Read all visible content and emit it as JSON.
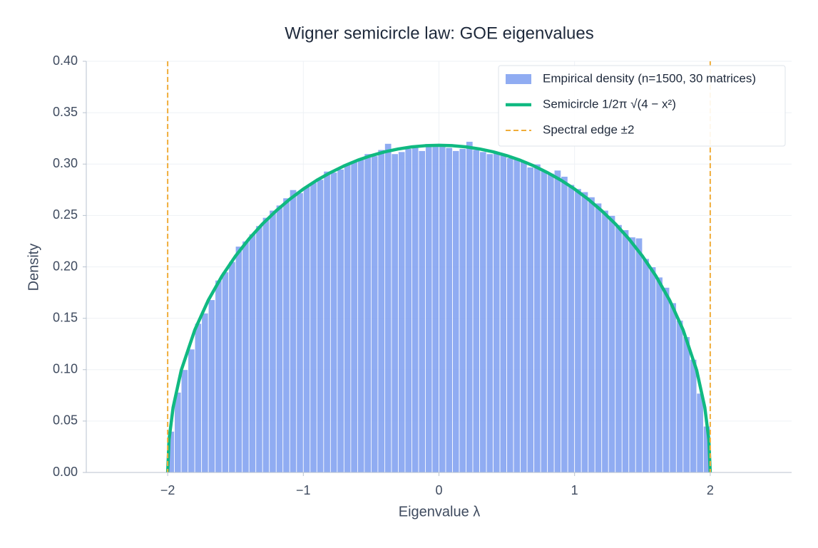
{
  "chart_data": {
    "type": "histogram",
    "title": "Wigner semicircle law: GOE eigenvalues",
    "xlabel": "Eigenvalue λ",
    "ylabel": "Density",
    "xlim": [
      -2.6,
      2.6
    ],
    "ylim": [
      0,
      0.4
    ],
    "xticks": [
      {
        "value": -2,
        "label": "−2"
      },
      {
        "value": -1,
        "label": "−1"
      },
      0,
      1,
      2
    ],
    "yticks": [
      {
        "value": 0,
        "label": "0.00"
      },
      {
        "value": 0.05,
        "label": "0.05"
      },
      {
        "value": 0.1,
        "label": "0.10"
      },
      {
        "value": 0.15,
        "label": "0.15"
      },
      {
        "value": 0.2,
        "label": "0.20"
      },
      {
        "value": 0.25,
        "label": "0.25"
      },
      {
        "value": 0.3,
        "label": "0.30"
      },
      {
        "value": 0.35,
        "label": "0.35"
      },
      {
        "value": 0.4,
        "label": "0.40"
      }
    ],
    "grid": true,
    "legend": "upper right",
    "series": [
      {
        "name": "Empirical density (n=1500, 30 matrices)",
        "type": "hist",
        "color": "#7c9df0",
        "bins": [
          -2,
          -1.95,
          -1.9,
          -1.85,
          -1.8,
          -1.75,
          -1.7,
          -1.65,
          -1.6,
          -1.55,
          -1.5,
          -1.45,
          -1.4,
          -1.35,
          -1.3,
          -1.25,
          -1.2,
          -1.15,
          -1.1,
          -1.05,
          -1,
          -0.95,
          -0.9,
          -0.85,
          -0.8,
          -0.75,
          -0.7,
          -0.65,
          -0.6,
          -0.55,
          -0.5,
          -0.45,
          -0.4,
          -0.35,
          -0.3,
          -0.25,
          -0.2,
          -0.15,
          -0.1,
          -0.05,
          0,
          0.05,
          0.1,
          0.15,
          0.2,
          0.25,
          0.3,
          0.35,
          0.4,
          0.45,
          0.5,
          0.55,
          0.6,
          0.65,
          0.7,
          0.75,
          0.8,
          0.85,
          0.9,
          0.95,
          1,
          1.05,
          1.1,
          1.15,
          1.2,
          1.25,
          1.3,
          1.35,
          1.4,
          1.45,
          1.5,
          1.55,
          1.6,
          1.65,
          1.7,
          1.75,
          1.8,
          1.85,
          1.9,
          1.95,
          2
        ],
        "values": [
          0.04,
          0.078,
          0.1,
          0.12,
          0.145,
          0.155,
          0.168,
          0.187,
          0.195,
          0.205,
          0.22,
          0.225,
          0.232,
          0.24,
          0.248,
          0.255,
          0.26,
          0.267,
          0.275,
          0.272,
          0.278,
          0.282,
          0.285,
          0.293,
          0.292,
          0.295,
          0.3,
          0.302,
          0.305,
          0.31,
          0.308,
          0.314,
          0.32,
          0.31,
          0.312,
          0.315,
          0.316,
          0.313,
          0.318,
          0.317,
          0.317,
          0.316,
          0.313,
          0.315,
          0.322,
          0.314,
          0.312,
          0.31,
          0.311,
          0.309,
          0.306,
          0.305,
          0.303,
          0.297,
          0.3,
          0.294,
          0.291,
          0.294,
          0.288,
          0.28,
          0.276,
          0.273,
          0.268,
          0.262,
          0.255,
          0.25,
          0.241,
          0.236,
          0.229,
          0.228,
          0.208,
          0.2,
          0.19,
          0.18,
          0.165,
          0.148,
          0.132,
          0.11,
          0.077,
          0.045
        ]
      },
      {
        "name": "Semicircle 1/2π √(4 − x²)",
        "type": "line",
        "color": "#10b981",
        "x": [
          -2,
          -1.99,
          -1.96,
          -1.9,
          -1.8,
          -1.7,
          -1.6,
          -1.5,
          -1.4,
          -1.3,
          -1.2,
          -1.1,
          -1,
          -0.9,
          -0.8,
          -0.7,
          -0.6,
          -0.5,
          -0.4,
          -0.3,
          -0.2,
          -0.1,
          0,
          0.1,
          0.2,
          0.3,
          0.4,
          0.5,
          0.6,
          0.7,
          0.8,
          0.9,
          1,
          1.1,
          1.2,
          1.3,
          1.4,
          1.5,
          1.6,
          1.7,
          1.8,
          1.9,
          1.96,
          1.99,
          2
        ],
        "values": [
          0,
          0.0318,
          0.0633,
          0.0994,
          0.1387,
          0.1677,
          0.191,
          0.2105,
          0.2273,
          0.2419,
          0.2546,
          0.2658,
          0.2757,
          0.2843,
          0.2917,
          0.2982,
          0.3037,
          0.3082,
          0.3119,
          0.3147,
          0.3167,
          0.3179,
          0.3183,
          0.3179,
          0.3167,
          0.3147,
          0.3119,
          0.3082,
          0.3037,
          0.2982,
          0.2917,
          0.2843,
          0.2757,
          0.2658,
          0.2546,
          0.2419,
          0.2273,
          0.2105,
          0.191,
          0.1677,
          0.1387,
          0.0994,
          0.0633,
          0.0318,
          0
        ]
      },
      {
        "name": "Spectral edge ±2",
        "type": "vline",
        "color": "#f0ad3a",
        "x": [
          -2,
          2
        ]
      }
    ]
  }
}
